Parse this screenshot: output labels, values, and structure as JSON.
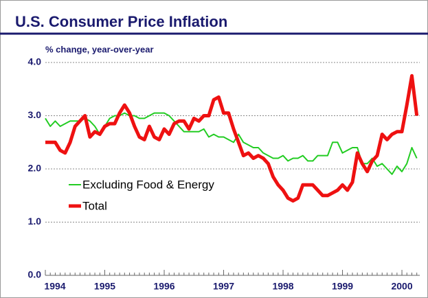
{
  "chart_data": {
    "type": "line",
    "title": "U.S. Consumer Price Inflation",
    "ylabel": "% change, year-over-year",
    "x": [
      1994,
      1994.083,
      1994.167,
      1994.25,
      1994.333,
      1994.417,
      1994.5,
      1994.583,
      1994.667,
      1994.75,
      1994.833,
      1994.917,
      1995,
      1995.083,
      1995.167,
      1995.25,
      1995.333,
      1995.417,
      1995.5,
      1995.583,
      1995.667,
      1995.75,
      1995.833,
      1995.917,
      1996,
      1996.083,
      1996.167,
      1996.25,
      1996.333,
      1996.417,
      1996.5,
      1996.583,
      1996.667,
      1996.75,
      1996.833,
      1996.917,
      1997,
      1997.083,
      1997.167,
      1997.25,
      1997.333,
      1997.417,
      1997.5,
      1997.583,
      1997.667,
      1997.75,
      1997.833,
      1997.917,
      1998,
      1998.083,
      1998.167,
      1998.25,
      1998.333,
      1998.417,
      1998.5,
      1998.583,
      1998.667,
      1998.75,
      1998.833,
      1998.917,
      1999,
      1999.083,
      1999.167,
      1999.25,
      1999.333,
      1999.417,
      1999.5,
      1999.583,
      1999.667,
      1999.75,
      1999.833,
      1999.917,
      2000,
      2000.083,
      2000.167,
      2000.25
    ],
    "series": [
      {
        "name": "Excluding Food & Energy",
        "color": "#22cc22",
        "width": 2,
        "values": [
          2.95,
          2.8,
          2.9,
          2.8,
          2.85,
          2.9,
          2.9,
          2.9,
          2.95,
          2.9,
          2.8,
          2.65,
          2.8,
          2.95,
          3.0,
          3.0,
          3.05,
          3.0,
          3.0,
          2.95,
          2.95,
          3.0,
          3.05,
          3.05,
          3.05,
          3.0,
          2.9,
          2.8,
          2.7,
          2.7,
          2.7,
          2.7,
          2.75,
          2.6,
          2.65,
          2.6,
          2.6,
          2.55,
          2.5,
          2.65,
          2.5,
          2.45,
          2.4,
          2.4,
          2.3,
          2.25,
          2.2,
          2.2,
          2.25,
          2.15,
          2.2,
          2.2,
          2.25,
          2.15,
          2.15,
          2.25,
          2.25,
          2.25,
          2.5,
          2.5,
          2.3,
          2.35,
          2.4,
          2.4,
          2.1,
          2.1,
          2.2,
          2.05,
          2.1,
          2.0,
          1.9,
          2.05,
          1.95,
          2.1,
          2.4,
          2.2
        ]
      },
      {
        "name": "Total",
        "color": "#ee1111",
        "width": 5,
        "values": [
          2.5,
          2.5,
          2.5,
          2.35,
          2.3,
          2.5,
          2.8,
          2.9,
          3.0,
          2.6,
          2.7,
          2.65,
          2.8,
          2.85,
          2.85,
          3.05,
          3.2,
          3.05,
          2.8,
          2.6,
          2.55,
          2.8,
          2.6,
          2.55,
          2.75,
          2.65,
          2.85,
          2.9,
          2.9,
          2.75,
          2.95,
          2.9,
          3.0,
          3.0,
          3.3,
          3.35,
          3.05,
          3.05,
          2.75,
          2.5,
          2.25,
          2.3,
          2.2,
          2.25,
          2.2,
          2.1,
          1.85,
          1.7,
          1.6,
          1.45,
          1.4,
          1.45,
          1.7,
          1.7,
          1.7,
          1.6,
          1.5,
          1.5,
          1.55,
          1.6,
          1.7,
          1.6,
          1.75,
          2.3,
          2.1,
          1.95,
          2.15,
          2.25,
          2.65,
          2.55,
          2.65,
          2.7,
          2.7,
          3.2,
          3.75,
          3.0
        ]
      }
    ],
    "xlim": [
      1994,
      2000.3
    ],
    "xticks": [
      1994,
      1995,
      1996,
      1997,
      1998,
      1999,
      2000
    ],
    "ylim": [
      0,
      4
    ],
    "yticks": [
      {
        "value": 0,
        "label": "0.0"
      },
      {
        "value": 1,
        "label": "1.0"
      },
      {
        "value": 2,
        "label": "2.0"
      },
      {
        "value": 3,
        "label": "3.0"
      },
      {
        "value": 4,
        "label": "4.0"
      }
    ],
    "grid": true
  }
}
